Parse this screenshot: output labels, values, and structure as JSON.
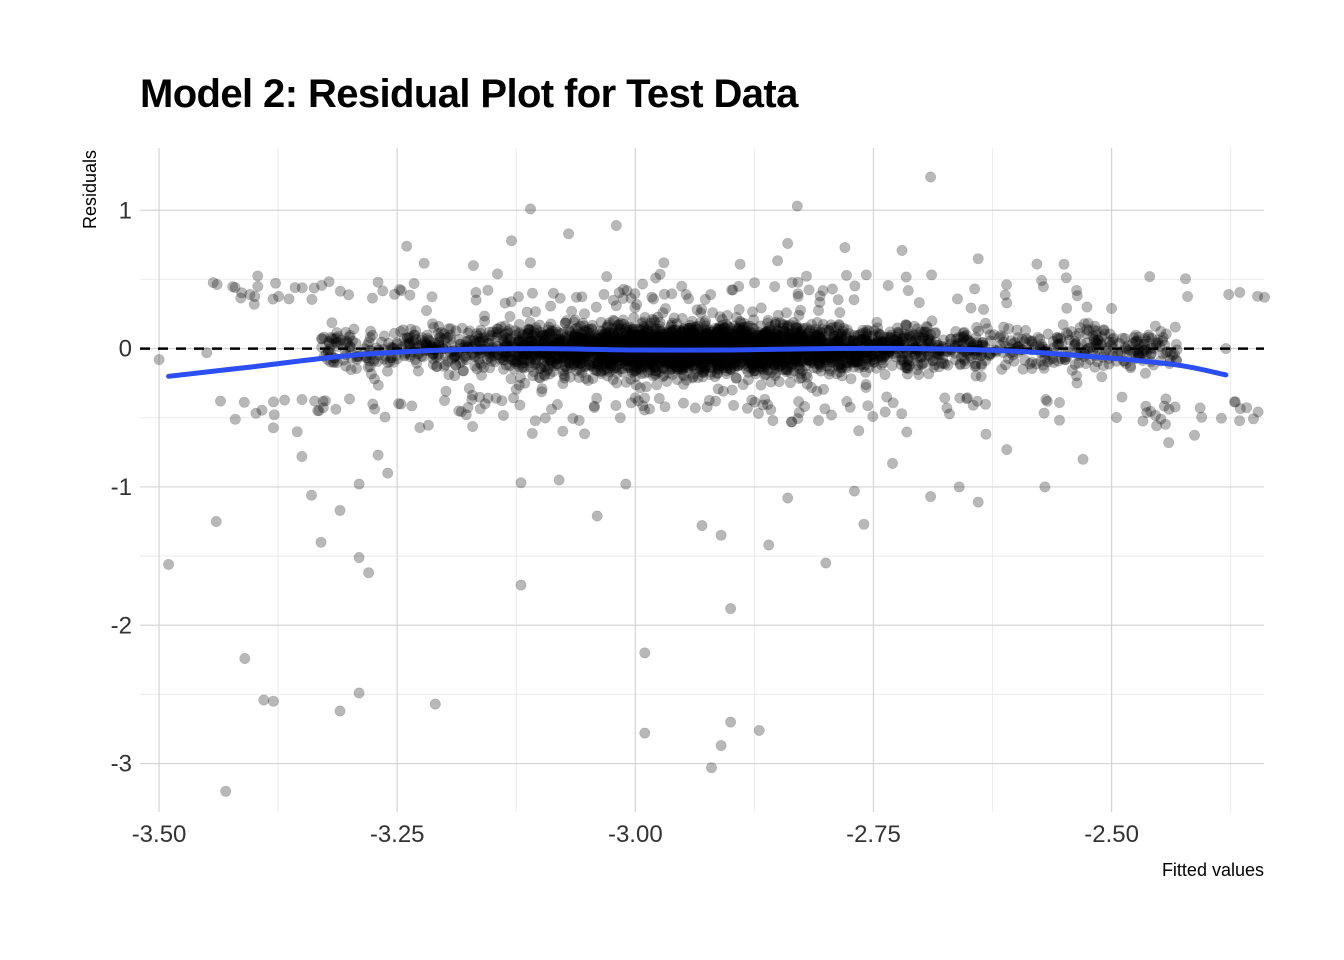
{
  "chart_data": {
    "type": "scatter",
    "title": "Model 2: Residual Plot for Test Data",
    "xlabel": "Fitted values",
    "ylabel": "Residuals",
    "xlim": [
      -3.52,
      -2.34
    ],
    "ylim": [
      -3.35,
      1.45
    ],
    "x_ticks": [
      {
        "value": -3.5,
        "label": "-3.50"
      },
      {
        "value": -3.25,
        "label": "-3.25"
      },
      {
        "value": -3.0,
        "label": "-3.00"
      },
      {
        "value": -2.75,
        "label": "-2.75"
      },
      {
        "value": -2.5,
        "label": "-2.50"
      }
    ],
    "y_ticks": [
      {
        "value": 1,
        "label": "1"
      },
      {
        "value": 0,
        "label": "0"
      },
      {
        "value": -1,
        "label": "-1"
      },
      {
        "value": -2,
        "label": "-2"
      },
      {
        "value": -3,
        "label": "-3"
      }
    ],
    "grid": true,
    "reference_line": {
      "y": 0,
      "style": "dashed",
      "color": "#000000"
    },
    "point_color": "#000000",
    "point_opacity": 0.28,
    "smooth_color": "#2B4EF5",
    "smooth_curve": [
      {
        "x": -3.49,
        "y": -0.2
      },
      {
        "x": -3.4,
        "y": -0.13
      },
      {
        "x": -3.3,
        "y": -0.05
      },
      {
        "x": -3.2,
        "y": -0.01
      },
      {
        "x": -3.1,
        "y": 0.0
      },
      {
        "x": -3.0,
        "y": -0.01
      },
      {
        "x": -2.9,
        "y": -0.01
      },
      {
        "x": -2.8,
        "y": 0.0
      },
      {
        "x": -2.7,
        "y": 0.0
      },
      {
        "x": -2.6,
        "y": -0.02
      },
      {
        "x": -2.5,
        "y": -0.07
      },
      {
        "x": -2.43,
        "y": -0.12
      },
      {
        "x": -2.38,
        "y": -0.19
      }
    ],
    "core_cloud": {
      "x_range": [
        -3.33,
        -2.43
      ],
      "center_x": -2.93,
      "residual_spread": 0.13,
      "point_count": 4200
    },
    "outliers": [
      [
        -3.49,
        -1.56
      ],
      [
        -3.43,
        -3.2
      ],
      [
        -3.44,
        -1.25
      ],
      [
        -3.41,
        -2.24
      ],
      [
        -3.39,
        -2.54
      ],
      [
        -3.38,
        -2.55
      ],
      [
        -3.33,
        -1.4
      ],
      [
        -3.31,
        -2.62
      ],
      [
        -3.29,
        -1.51
      ],
      [
        -3.28,
        -1.62
      ],
      [
        -3.29,
        -2.49
      ],
      [
        -3.21,
        -2.57
      ],
      [
        -3.34,
        -1.06
      ],
      [
        -3.31,
        -1.17
      ],
      [
        -3.29,
        -0.98
      ],
      [
        -3.27,
        -0.77
      ],
      [
        -3.26,
        -0.9
      ],
      [
        -3.35,
        -0.78
      ],
      [
        -3.12,
        -1.71
      ],
      [
        -3.12,
        -0.97
      ],
      [
        -3.08,
        -0.95
      ],
      [
        -3.04,
        -1.21
      ],
      [
        -3.01,
        -0.98
      ],
      [
        -2.99,
        -2.2
      ],
      [
        -2.99,
        -2.78
      ],
      [
        -2.93,
        -1.28
      ],
      [
        -2.91,
        -1.35
      ],
      [
        -2.9,
        -1.88
      ],
      [
        -2.9,
        -2.7
      ],
      [
        -2.91,
        -2.87
      ],
      [
        -2.92,
        -3.03
      ],
      [
        -2.87,
        -2.76
      ],
      [
        -2.86,
        -1.42
      ],
      [
        -2.84,
        -1.08
      ],
      [
        -2.8,
        -1.55
      ],
      [
        -2.77,
        -1.03
      ],
      [
        -2.76,
        -1.27
      ],
      [
        -2.73,
        -0.83
      ],
      [
        -2.69,
        -1.07
      ],
      [
        -2.66,
        -1.0
      ],
      [
        -2.64,
        -1.11
      ],
      [
        -2.61,
        -0.73
      ],
      [
        -2.57,
        -1.0
      ],
      [
        -2.53,
        -0.8
      ],
      [
        -2.44,
        -0.68
      ],
      [
        -2.69,
        1.24
      ],
      [
        -2.83,
        1.03
      ],
      [
        -3.11,
        1.01
      ],
      [
        -3.02,
        0.89
      ],
      [
        -3.13,
        0.78
      ],
      [
        -2.84,
        0.76
      ],
      [
        -3.24,
        0.74
      ],
      [
        -2.78,
        0.73
      ],
      [
        -2.64,
        0.65
      ],
      [
        -2.46,
        0.52
      ],
      [
        -2.38,
        0.0
      ],
      [
        -3.5,
        -0.08
      ],
      [
        -3.45,
        -0.03
      ],
      [
        -3.07,
        0.83
      ],
      [
        -2.97,
        0.62
      ],
      [
        -3.27,
        0.48
      ],
      [
        -2.55,
        0.61
      ],
      [
        -2.5,
        0.29
      ],
      [
        -3.11,
        0.62
      ],
      [
        -2.61,
        0.33
      ],
      [
        -3.4,
        0.32
      ],
      [
        -3.17,
        0.6
      ],
      [
        -2.89,
        0.61
      ],
      [
        -2.72,
        0.71
      ],
      [
        -3.03,
        0.52
      ]
    ]
  }
}
